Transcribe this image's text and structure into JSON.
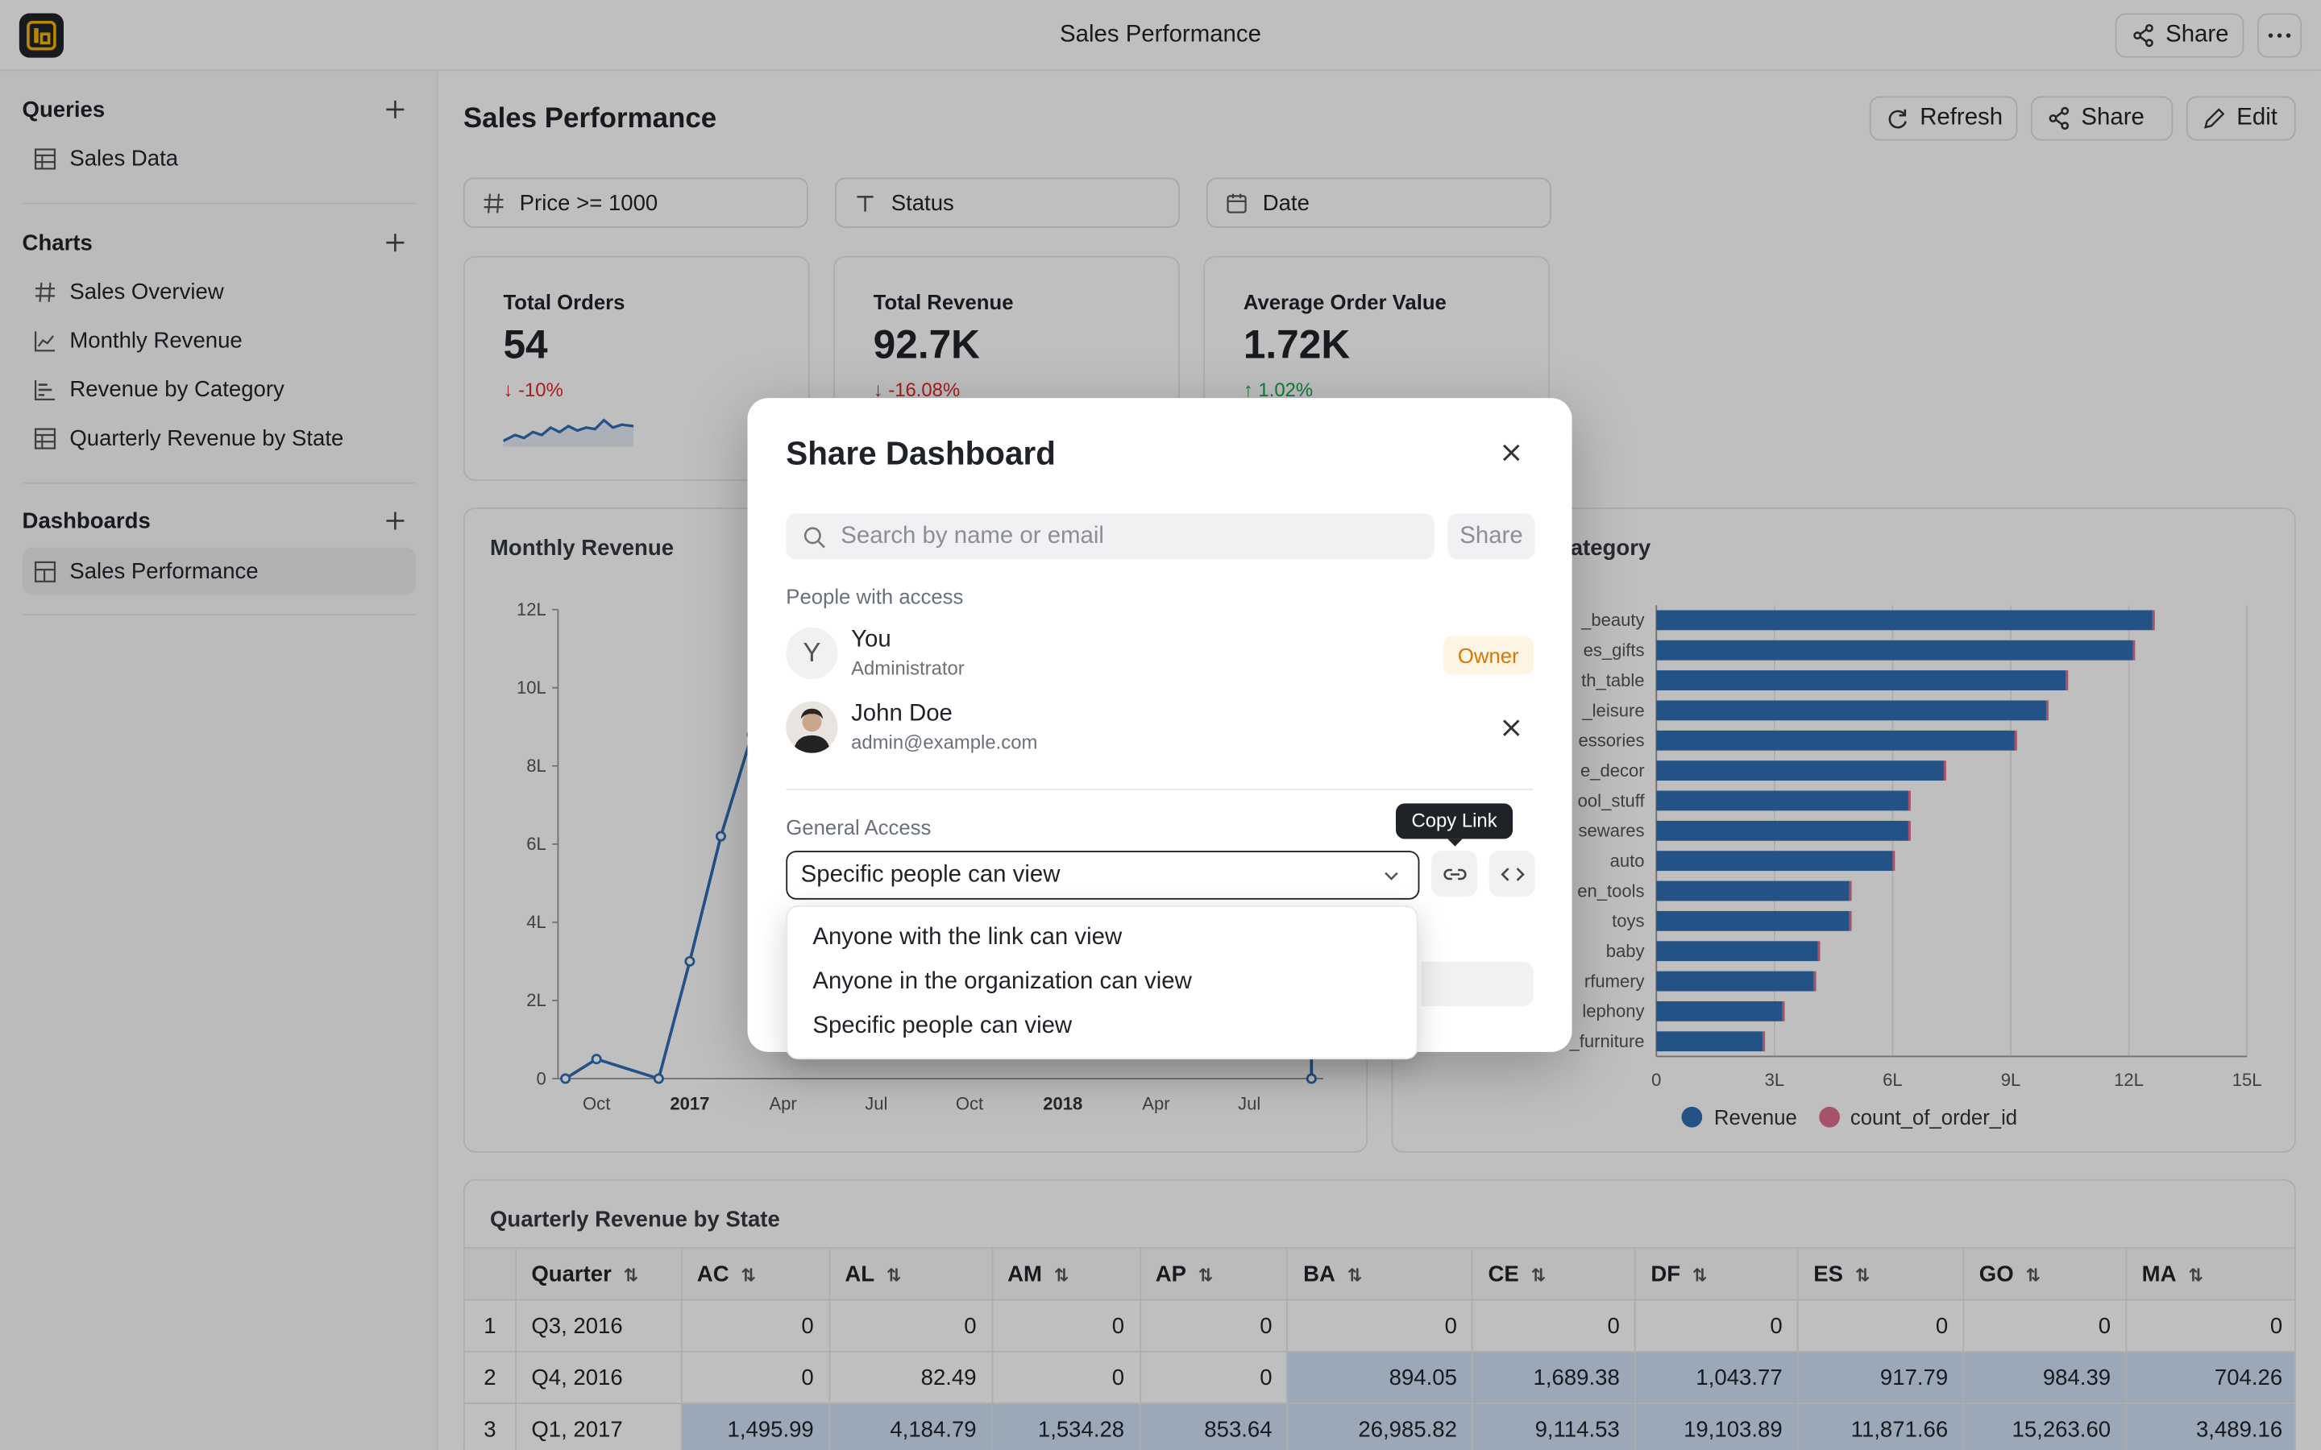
{
  "app": {
    "title": "Sales Performance",
    "share_label": "Share",
    "more_icon": "ellipsis-icon"
  },
  "sidebar": {
    "queries": {
      "title": "Queries",
      "items": [
        {
          "label": "Sales Data",
          "icon": "table-icon"
        }
      ]
    },
    "charts": {
      "title": "Charts",
      "items": [
        {
          "label": "Sales Overview",
          "icon": "hash-icon"
        },
        {
          "label": "Monthly Revenue",
          "icon": "line-chart-icon"
        },
        {
          "label": "Revenue by Category",
          "icon": "bar-chart-icon"
        },
        {
          "label": "Quarterly Revenue by State",
          "icon": "table-icon"
        }
      ]
    },
    "dashboards": {
      "title": "Dashboards",
      "items": [
        {
          "label": "Sales Performance",
          "icon": "layout-icon",
          "active": true
        }
      ]
    }
  },
  "dashboard": {
    "title": "Sales Performance",
    "actions": {
      "refresh": "Refresh",
      "share": "Share",
      "edit": "Edit"
    },
    "filters": [
      {
        "label": "Price >= 1000",
        "icon": "hash-icon"
      },
      {
        "label": "Status",
        "icon": "text-type-icon"
      },
      {
        "label": "Date",
        "icon": "calendar-icon"
      }
    ],
    "kpis": [
      {
        "label": "Total Orders",
        "value": "54",
        "delta": "-10%",
        "direction": "down"
      },
      {
        "label": "Total Revenue",
        "value": "92.7K",
        "delta": "-16.08%",
        "direction": "down"
      },
      {
        "label": "Average Order Value",
        "value": "1.72K",
        "delta": "1.02%",
        "direction": "up"
      }
    ],
    "monthly_chart": {
      "title": "Monthly Revenue",
      "y_ticks": [
        "12L",
        "10L",
        "8L",
        "6L",
        "4L",
        "2L",
        "0"
      ],
      "x_ticks": [
        "Oct",
        "2017",
        "Apr",
        "Jul",
        "Oct",
        "2018",
        "Apr",
        "Jul"
      ]
    },
    "category_chart": {
      "title_visible": "ategory",
      "categories": [
        "_beauty",
        "es_gifts",
        "th_table",
        "_leisure",
        "essories",
        "e_decor",
        "ool_stuff",
        "sewares",
        "auto",
        "en_tools",
        "toys",
        "baby",
        "rfumery",
        "lephony",
        "_furniture"
      ],
      "x_ticks": [
        "0",
        "3L",
        "6L",
        "9L",
        "12L",
        "15L"
      ],
      "legend": [
        "Revenue",
        "count_of_order_id"
      ]
    },
    "table": {
      "title": "Quarterly Revenue by State",
      "columns": [
        "Quarter",
        "AC",
        "AL",
        "AM",
        "AP",
        "BA",
        "CE",
        "DF",
        "ES",
        "GO",
        "MA"
      ],
      "rows": [
        {
          "idx": "1",
          "cells": [
            "Q3, 2016",
            "0",
            "0",
            "0",
            "0",
            "0",
            "0",
            "0",
            "0",
            "0",
            "0"
          ]
        },
        {
          "idx": "2",
          "cells": [
            "Q4, 2016",
            "0",
            "82.49",
            "0",
            "0",
            "894.05",
            "1,689.38",
            "1,043.77",
            "917.79",
            "984.39",
            "704.26"
          ]
        },
        {
          "idx": "3",
          "cells": [
            "Q1, 2017",
            "1,495.99",
            "4,184.79",
            "1,534.28",
            "853.64",
            "26,985.82",
            "9,114.53",
            "19,103.89",
            "11,871.66",
            "15,263.60",
            "3,489.16"
          ]
        }
      ]
    }
  },
  "chart_data": [
    {
      "type": "line",
      "title": "Monthly Revenue",
      "x": [
        "2016-09",
        "2016-10",
        "2016-12",
        "2017-01",
        "2017-02",
        "2017-03",
        "2018-09"
      ],
      "y": [
        0,
        50000,
        0,
        300000,
        620000,
        880000,
        0
      ],
      "ylim": [
        0,
        1200000
      ],
      "y_unit": "L"
    },
    {
      "type": "bar",
      "orientation": "horizontal",
      "categories": [
        "_beauty",
        "es_gifts",
        "th_table",
        "_leisure",
        "essories",
        "e_decor",
        "ool_stuff",
        "sewares",
        "auto",
        "en_tools",
        "toys",
        "baby",
        "rfumery",
        "lephony",
        "_furniture"
      ],
      "series": [
        {
          "name": "Revenue",
          "color": "#2f6eb5",
          "values": [
            1260000,
            1210000,
            1040000,
            990000,
            910000,
            730000,
            640000,
            640000,
            600000,
            490000,
            490000,
            410000,
            400000,
            320000,
            270000
          ]
        },
        {
          "name": "count_of_order_id",
          "color": "#e06c8f",
          "values": [
            0,
            0,
            0,
            0,
            0,
            0,
            0,
            0,
            0,
            0,
            0,
            0,
            0,
            0,
            0
          ]
        }
      ],
      "xlim": [
        0,
        1500000
      ],
      "x_ticks": [
        "0",
        "3L",
        "6L",
        "9L",
        "12L",
        "15L"
      ],
      "legend_position": "bottom"
    }
  ],
  "modal": {
    "title": "Share Dashboard",
    "search_placeholder": "Search by name or email",
    "share_button": "Share",
    "people_label": "People with access",
    "people": [
      {
        "initial": "Y",
        "name": "You",
        "sub": "Administrator",
        "role": "Owner"
      },
      {
        "name": "John Doe",
        "sub": "admin@example.com"
      }
    ],
    "general_access_label": "General Access",
    "selected_access": "Specific people can view",
    "tooltip": "Copy Link",
    "options": [
      "Anyone with the link can view",
      "Anyone in the organization can view",
      "Specific people can view"
    ]
  }
}
